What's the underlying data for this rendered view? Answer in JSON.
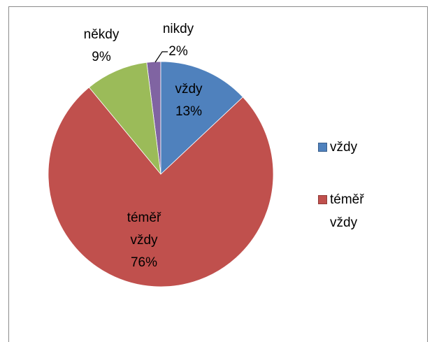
{
  "chart_data": {
    "type": "pie",
    "categories": [
      "vždy",
      "téměř vždy",
      "někdy",
      "nikdy"
    ],
    "values": [
      13,
      76,
      9,
      2
    ],
    "value_labels": [
      "13%",
      "76%",
      "9%",
      "2%"
    ],
    "colors": [
      "#4f81bd",
      "#c0504d",
      "#9bbb59",
      "#8064a2"
    ],
    "legend": {
      "position": "right",
      "visible_entries": 2
    }
  }
}
